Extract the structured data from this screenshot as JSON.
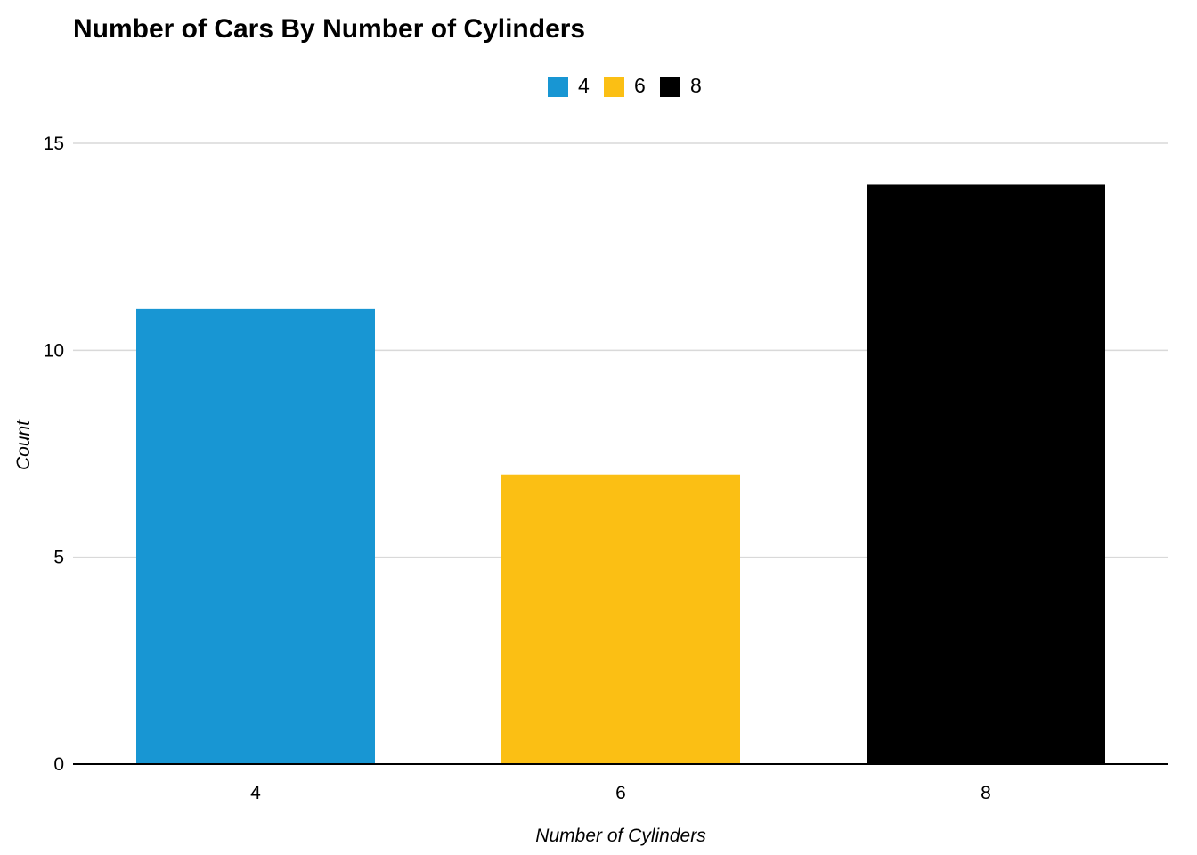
{
  "chart_data": {
    "type": "bar",
    "title": "Number of Cars By Number of Cylinders",
    "xlabel": "Number of Cylinders",
    "ylabel": "Count",
    "categories": [
      "4",
      "6",
      "8"
    ],
    "values": [
      11,
      7,
      14
    ],
    "colors": [
      "#1896d3",
      "#fbbf14",
      "#000000"
    ],
    "legend": {
      "position": "top-center",
      "entries": [
        "4",
        "6",
        "8"
      ]
    },
    "yticks": [
      "0",
      "5",
      "10",
      "15"
    ],
    "ylim": [
      0,
      15
    ],
    "grid": true
  }
}
